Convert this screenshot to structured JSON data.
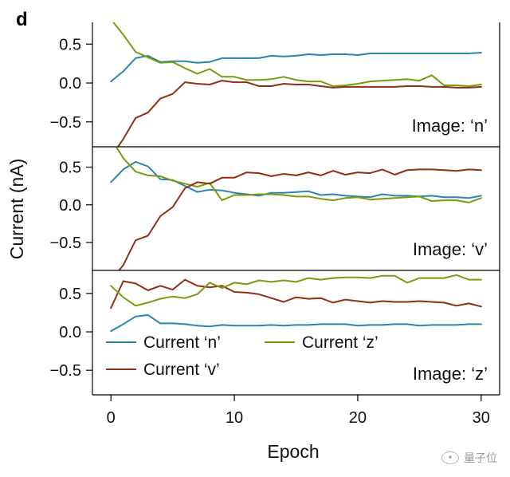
{
  "figure_letter": "d",
  "ylabel": "Current (nA)",
  "xlabel": "Epoch",
  "colors": {
    "n": "#2a86ad",
    "v": "#8f2f14",
    "z": "#7a9a10"
  },
  "legend": [
    {
      "key": "n",
      "label": "Current ‘n’"
    },
    {
      "key": "z",
      "label": "Current ‘z’"
    },
    {
      "key": "v",
      "label": "Current ‘v’"
    }
  ],
  "watermark": "量子位",
  "chart_data": [
    {
      "type": "line",
      "panel_label": "Image: ‘n’",
      "xlim": [
        -1.5,
        31.5
      ],
      "ylim": [
        -0.82,
        0.78
      ],
      "yticks": [
        0.5,
        0.0,
        -0.5
      ],
      "ytick_labels": [
        "0.5",
        "0.0",
        "−0.5"
      ],
      "x": [
        0,
        1,
        2,
        3,
        4,
        5,
        6,
        7,
        8,
        9,
        10,
        11,
        12,
        13,
        14,
        15,
        16,
        17,
        18,
        19,
        20,
        21,
        22,
        23,
        24,
        25,
        26,
        27,
        28,
        29,
        30
      ],
      "series": [
        {
          "key": "n",
          "values": [
            0.02,
            0.15,
            0.32,
            0.35,
            0.27,
            0.28,
            0.28,
            0.26,
            0.27,
            0.32,
            0.32,
            0.32,
            0.32,
            0.35,
            0.34,
            0.35,
            0.37,
            0.36,
            0.37,
            0.37,
            0.36,
            0.38,
            0.38,
            0.38,
            0.38,
            0.38,
            0.38,
            0.38,
            0.38,
            0.38,
            0.39
          ]
        },
        {
          "key": "z",
          "values": [
            0.82,
            0.62,
            0.4,
            0.33,
            0.26,
            0.27,
            0.19,
            0.12,
            0.18,
            0.08,
            0.08,
            0.04,
            0.04,
            0.05,
            0.08,
            0.04,
            0.02,
            0.02,
            -0.04,
            -0.03,
            -0.01,
            0.02,
            0.03,
            0.04,
            0.05,
            0.03,
            0.1,
            -0.03,
            -0.03,
            -0.04,
            -0.02
          ]
        },
        {
          "key": "v",
          "values": [
            -0.95,
            -0.72,
            -0.45,
            -0.38,
            -0.2,
            -0.14,
            0.01,
            -0.01,
            -0.02,
            0.03,
            0.01,
            0.01,
            -0.04,
            -0.04,
            -0.01,
            -0.02,
            -0.02,
            -0.04,
            -0.06,
            -0.05,
            -0.05,
            -0.05,
            -0.05,
            -0.05,
            -0.04,
            -0.04,
            -0.05,
            -0.05,
            -0.06,
            -0.06,
            -0.05
          ]
        }
      ]
    },
    {
      "type": "line",
      "panel_label": "Image: ‘v’",
      "xlim": [
        -1.5,
        31.5
      ],
      "ylim": [
        -0.87,
        0.77
      ],
      "yticks": [
        0.5,
        0.0,
        -0.5
      ],
      "ytick_labels": [
        "0.5",
        "0.0",
        "−0.5"
      ],
      "x": [
        0,
        1,
        2,
        3,
        4,
        5,
        6,
        7,
        8,
        9,
        10,
        11,
        12,
        13,
        14,
        15,
        16,
        17,
        18,
        19,
        20,
        21,
        22,
        23,
        24,
        25,
        26,
        27,
        28,
        29,
        30
      ],
      "series": [
        {
          "key": "n",
          "values": [
            0.3,
            0.47,
            0.57,
            0.51,
            0.34,
            0.33,
            0.25,
            0.17,
            0.2,
            0.19,
            0.16,
            0.14,
            0.12,
            0.16,
            0.16,
            0.17,
            0.18,
            0.13,
            0.14,
            0.12,
            0.11,
            0.1,
            0.14,
            0.12,
            0.12,
            0.11,
            0.12,
            0.1,
            0.1,
            0.09,
            0.12
          ]
        },
        {
          "key": "z",
          "values": [
            0.88,
            0.62,
            0.44,
            0.39,
            0.38,
            0.32,
            0.28,
            0.24,
            0.29,
            0.06,
            0.13,
            0.13,
            0.14,
            0.14,
            0.13,
            0.11,
            0.11,
            0.08,
            0.06,
            0.09,
            0.1,
            0.07,
            0.08,
            0.09,
            0.1,
            0.11,
            0.05,
            0.06,
            0.06,
            0.03,
            0.09
          ]
        },
        {
          "key": "v",
          "values": [
            -1.0,
            -0.8,
            -0.47,
            -0.41,
            -0.15,
            -0.03,
            0.22,
            0.3,
            0.28,
            0.36,
            0.36,
            0.43,
            0.42,
            0.38,
            0.41,
            0.39,
            0.43,
            0.39,
            0.45,
            0.4,
            0.43,
            0.42,
            0.47,
            0.4,
            0.46,
            0.47,
            0.47,
            0.46,
            0.45,
            0.47,
            0.46
          ]
        }
      ]
    },
    {
      "type": "line",
      "panel_label": "Image: ‘z’",
      "xlim": [
        -1.5,
        31.5
      ],
      "ylim": [
        -0.82,
        0.8
      ],
      "yticks": [
        0.5,
        0.0,
        -0.5
      ],
      "ytick_labels": [
        "0.5",
        "0.0",
        "−0.5"
      ],
      "xticks": [
        0,
        10,
        20,
        30
      ],
      "xtick_labels": [
        "0",
        "10",
        "20",
        "30"
      ],
      "legend_placement": "lower-left",
      "x": [
        0,
        1,
        2,
        3,
        4,
        5,
        6,
        7,
        8,
        9,
        10,
        11,
        12,
        13,
        14,
        15,
        16,
        17,
        18,
        19,
        20,
        21,
        22,
        23,
        24,
        25,
        26,
        27,
        28,
        29,
        30
      ],
      "series": [
        {
          "key": "n",
          "values": [
            0.01,
            0.1,
            0.2,
            0.22,
            0.11,
            0.11,
            0.1,
            0.08,
            0.07,
            0.09,
            0.08,
            0.08,
            0.08,
            0.09,
            0.08,
            0.09,
            0.09,
            0.1,
            0.1,
            0.1,
            0.08,
            0.09,
            0.09,
            0.1,
            0.1,
            0.08,
            0.09,
            0.09,
            0.09,
            0.1,
            0.1
          ]
        },
        {
          "key": "v",
          "values": [
            0.31,
            0.66,
            0.63,
            0.54,
            0.6,
            0.55,
            0.68,
            0.6,
            0.58,
            0.6,
            0.52,
            0.51,
            0.49,
            0.44,
            0.39,
            0.45,
            0.43,
            0.44,
            0.38,
            0.42,
            0.4,
            0.38,
            0.4,
            0.39,
            0.39,
            0.4,
            0.39,
            0.38,
            0.34,
            0.37,
            0.33
          ]
        },
        {
          "key": "z",
          "values": [
            0.6,
            0.45,
            0.34,
            0.38,
            0.43,
            0.46,
            0.44,
            0.49,
            0.64,
            0.57,
            0.64,
            0.62,
            0.67,
            0.65,
            0.67,
            0.65,
            0.7,
            0.68,
            0.7,
            0.71,
            0.71,
            0.7,
            0.73,
            0.73,
            0.64,
            0.7,
            0.7,
            0.7,
            0.74,
            0.68,
            0.68
          ]
        }
      ]
    }
  ]
}
